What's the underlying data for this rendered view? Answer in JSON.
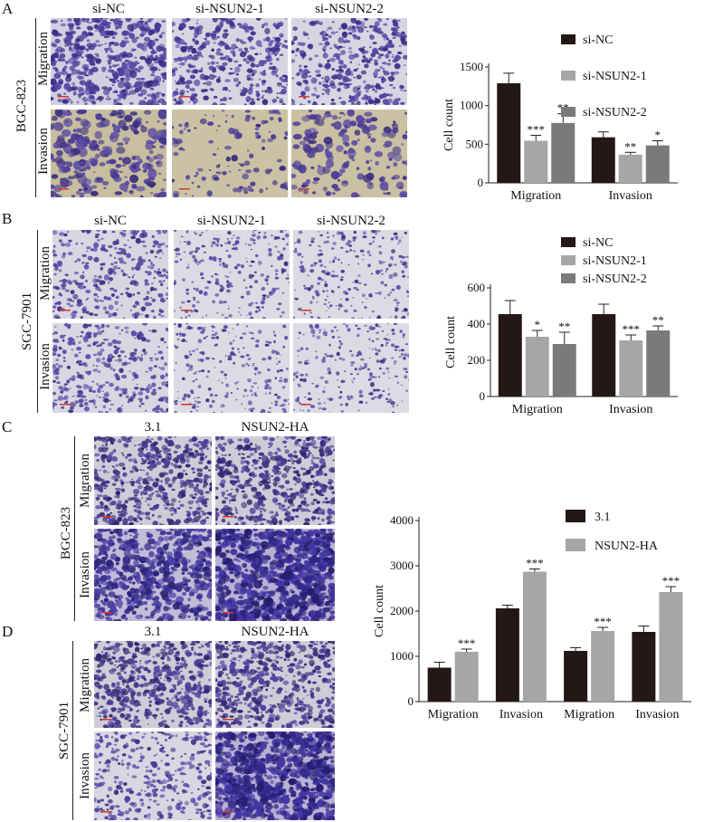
{
  "panels": {
    "A": {
      "label": "A",
      "cell_line": "BGC-823",
      "columns": [
        "si-NC",
        "si-NSUN2-1",
        "si-NSUN2-2"
      ],
      "rows": [
        "Migration",
        "Invasion"
      ]
    },
    "B": {
      "label": "B",
      "cell_line": "SGC-7901",
      "columns": [
        "si-NC",
        "si-NSUN2-1",
        "si-NSUN2-2"
      ],
      "rows": [
        "Migration",
        "Invasion"
      ]
    },
    "C": {
      "label": "C",
      "cell_line": "BGC-823",
      "columns": [
        "3.1",
        "NSUN2-HA"
      ],
      "rows": [
        "Migration",
        "Invasion"
      ]
    },
    "D": {
      "label": "D",
      "cell_line": "SGC-7901",
      "columns": [
        "3.1",
        "NSUN2-HA"
      ],
      "rows": [
        "Migration",
        "Invasion"
      ]
    }
  },
  "colors": {
    "dark": "#231815",
    "light": "#a6a6a6",
    "mid": "#7a7a7a",
    "stain": "#4b3c96",
    "bg_tan": "#c9bfa6",
    "bg_gray": "#d6d4dc"
  },
  "chart_data": [
    {
      "id": "A",
      "type": "bar",
      "categories": [
        "Migration",
        "Invasion"
      ],
      "series": [
        {
          "name": "si-NC",
          "values": [
            1290,
            590
          ],
          "errors": [
            130,
            70
          ],
          "sig": [
            "",
            ""
          ]
        },
        {
          "name": "si-NSUN2-1",
          "values": [
            545,
            365
          ],
          "errors": [
            70,
            30
          ],
          "sig": [
            "***",
            "**"
          ]
        },
        {
          "name": "si-NSUN2-2",
          "values": [
            775,
            485
          ],
          "errors": [
            120,
            60
          ],
          "sig": [
            "**",
            "*"
          ]
        }
      ],
      "ylabel": "Cell count",
      "ylim": [
        0,
        1500
      ],
      "yticks": [
        0,
        500,
        1000,
        1500
      ],
      "legend": "top-right"
    },
    {
      "id": "B",
      "type": "bar",
      "categories": [
        "Migration",
        "Invasion"
      ],
      "series": [
        {
          "name": "si-NC",
          "values": [
            455,
            455
          ],
          "errors": [
            75,
            55
          ],
          "sig": [
            "",
            ""
          ]
        },
        {
          "name": "si-NSUN2-1",
          "values": [
            330,
            310
          ],
          "errors": [
            35,
            30
          ],
          "sig": [
            "*",
            "***"
          ]
        },
        {
          "name": "si-NSUN2-2",
          "values": [
            290,
            365
          ],
          "errors": [
            65,
            25
          ],
          "sig": [
            "**",
            "**"
          ]
        }
      ],
      "ylabel": "Cell count",
      "ylim": [
        0,
        600
      ],
      "yticks": [
        0,
        200,
        400,
        600
      ],
      "legend": "top-right"
    },
    {
      "id": "CD",
      "type": "bar",
      "categories": [
        "Migration",
        "Invasion",
        "Migration",
        "Invasion"
      ],
      "series": [
        {
          "name": "3.1",
          "values": [
            750,
            2060,
            1120,
            1540
          ],
          "errors": [
            120,
            70,
            70,
            130
          ],
          "sig": [
            "",
            "",
            "",
            ""
          ]
        },
        {
          "name": "NSUN2-HA",
          "values": [
            1100,
            2870,
            1560,
            2420
          ],
          "errors": [
            60,
            60,
            80,
            120
          ],
          "sig": [
            "***",
            "***",
            "***",
            "***"
          ]
        }
      ],
      "ylabel": "Cell count",
      "ylim": [
        0,
        4000
      ],
      "yticks": [
        0,
        1000,
        2000,
        3000,
        4000
      ],
      "legend": "top"
    }
  ]
}
